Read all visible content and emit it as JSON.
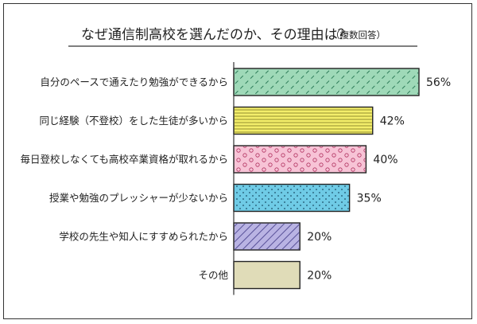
{
  "chart_data": {
    "type": "bar",
    "orientation": "horizontal",
    "title": "なぜ通信制高校を選んだのか、その理由は？",
    "subtitle": "（複数回答）",
    "categories": [
      "自分のペースで通えたり勉強ができるから",
      "同じ経験（不登校）をした生徒が多いから",
      "毎日登校しなくても高校卒業資格が取れるから",
      "授業や勉強のプレッシャーが少ないから",
      "学校の先生や知人にすすめられたから",
      "その他"
    ],
    "values": [
      56,
      42,
      40,
      35,
      20,
      20
    ],
    "value_labels": [
      "56%",
      "42%",
      "40%",
      "35%",
      "20%",
      "20%"
    ],
    "unit": "%",
    "xlim": [
      0,
      56
    ],
    "grid": false,
    "bar_styles": [
      {
        "fill": "#9fd9b8",
        "pattern": "diagonal-dash"
      },
      {
        "fill": "#f3ee6a",
        "pattern": "horizontal-lines"
      },
      {
        "fill": "#f7c3d6",
        "pattern": "circles"
      },
      {
        "fill": "#6fcbe6",
        "pattern": "dots"
      },
      {
        "fill": "#b9b3e3",
        "pattern": "diagonal-lines"
      },
      {
        "fill": "#e0dcb8",
        "pattern": "none"
      }
    ]
  }
}
